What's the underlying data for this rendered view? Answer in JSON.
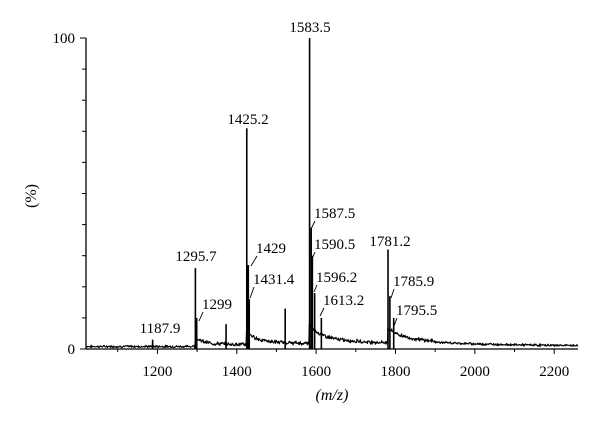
{
  "chart_data": {
    "type": "line",
    "title": "",
    "xlabel": "(m/z)",
    "ylabel": "(%)",
    "xlim": [
      1020,
      2260
    ],
    "ylim": [
      0,
      100
    ],
    "x_ticks": [
      1200,
      1400,
      1600,
      1800,
      2000,
      2200
    ],
    "x_tick_labels": [
      "1200",
      "1400",
      "1600",
      "1800",
      "2000",
      "2200"
    ],
    "y_tick_labels": [
      {
        "value": 0,
        "label": "0"
      },
      {
        "value": 100,
        "label": "100"
      }
    ],
    "y_minor_ticks": [
      10,
      20,
      30,
      40,
      50,
      60,
      70,
      80,
      90
    ],
    "peaks": [
      {
        "x": 1187.9,
        "y": 3,
        "label": "1187.9"
      },
      {
        "x": 1295.7,
        "y": 26,
        "label": "1295.7"
      },
      {
        "x": 1299,
        "y": 10,
        "label": "1299"
      },
      {
        "x": 1373,
        "y": 8,
        "label": ""
      },
      {
        "x": 1425.2,
        "y": 71,
        "label": "1425.2"
      },
      {
        "x": 1429,
        "y": 27,
        "label": "1429"
      },
      {
        "x": 1431.4,
        "y": 16,
        "label": "1431.4"
      },
      {
        "x": 1522,
        "y": 13,
        "label": ""
      },
      {
        "x": 1583.5,
        "y": 100,
        "label": "1583.5"
      },
      {
        "x": 1587.5,
        "y": 39,
        "label": "1587.5"
      },
      {
        "x": 1590.5,
        "y": 30,
        "label": "1590.5"
      },
      {
        "x": 1596.2,
        "y": 18,
        "label": "1596.2"
      },
      {
        "x": 1613.2,
        "y": 10,
        "label": "1613.2"
      },
      {
        "x": 1781.2,
        "y": 32,
        "label": "1781.2"
      },
      {
        "x": 1785.9,
        "y": 17,
        "label": "1785.9"
      },
      {
        "x": 1795.5,
        "y": 10,
        "label": "1795.5"
      }
    ]
  }
}
